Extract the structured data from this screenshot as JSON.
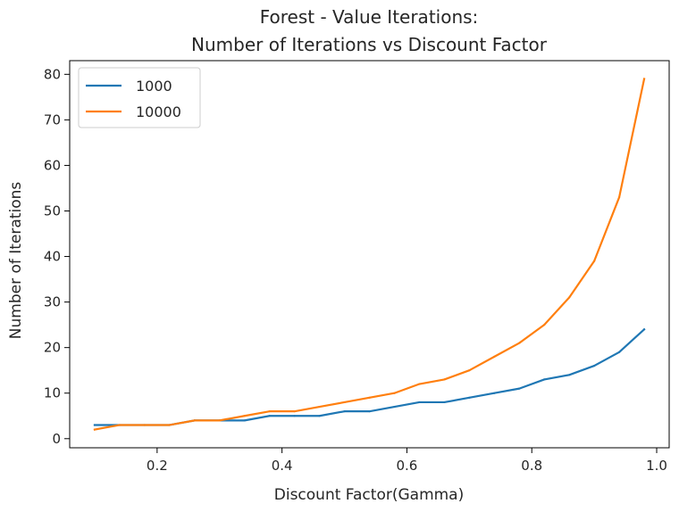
{
  "chart_data": {
    "type": "line",
    "title": [
      "Forest - Value Iterations:",
      "Number of Iterations vs Discount Factor"
    ],
    "xlabel": "Discount Factor(Gamma)",
    "ylabel": "Number of Iterations",
    "xlim": [
      0.06,
      1.02
    ],
    "ylim": [
      -2,
      83
    ],
    "xticks": [
      0.2,
      0.4,
      0.6,
      0.8,
      1.0
    ],
    "xtick_labels": [
      "0.2",
      "0.4",
      "0.6",
      "0.8",
      "1.0"
    ],
    "yticks": [
      0,
      10,
      20,
      30,
      40,
      50,
      60,
      70,
      80
    ],
    "ytick_labels": [
      "0",
      "10",
      "20",
      "30",
      "40",
      "50",
      "60",
      "70",
      "80"
    ],
    "grid": false,
    "legend_position": "top-left",
    "x": [
      0.1,
      0.14,
      0.18,
      0.22,
      0.26,
      0.3,
      0.34,
      0.38,
      0.42,
      0.46,
      0.5,
      0.54,
      0.58,
      0.62,
      0.66,
      0.7,
      0.74,
      0.78,
      0.82,
      0.86,
      0.9,
      0.94,
      0.98
    ],
    "series": [
      {
        "name": "1000",
        "color": "#1f77b4",
        "values": [
          3,
          3,
          3,
          3,
          4,
          4,
          4,
          5,
          5,
          5,
          6,
          6,
          7,
          8,
          8,
          9,
          10,
          11,
          13,
          14,
          16,
          19,
          24
        ]
      },
      {
        "name": "10000",
        "color": "#ff7f0e",
        "values": [
          2,
          3,
          3,
          3,
          4,
          4,
          5,
          6,
          6,
          7,
          8,
          9,
          10,
          12,
          13,
          15,
          18,
          21,
          25,
          31,
          39,
          53,
          79
        ]
      }
    ]
  }
}
